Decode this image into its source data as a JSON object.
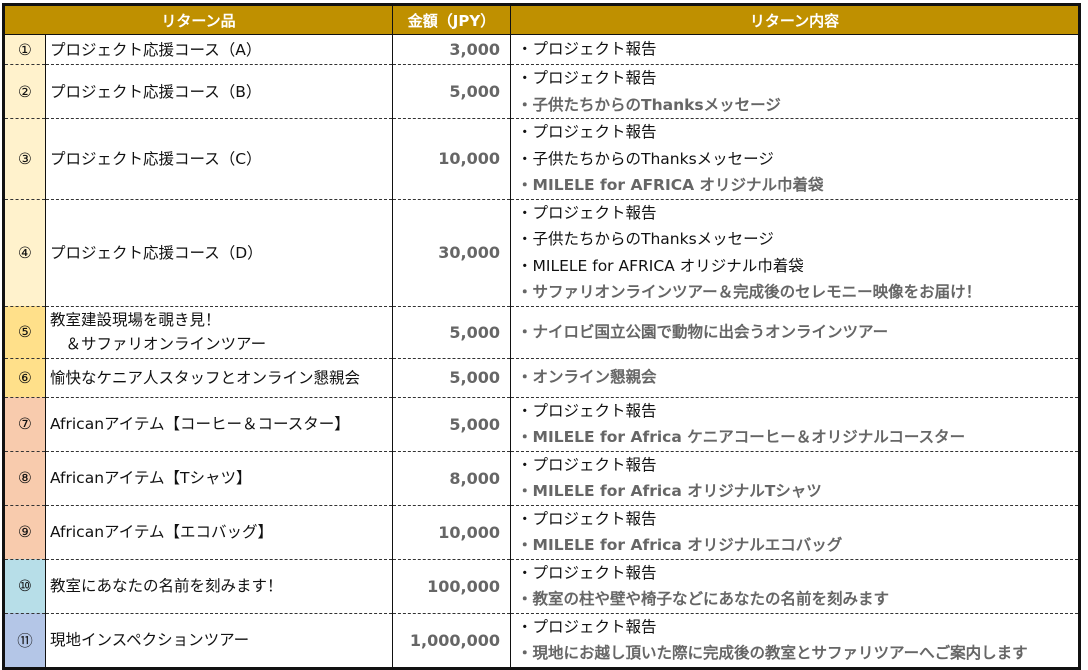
{
  "header": {
    "item": "リターン品",
    "amount": "金額（JPY）",
    "content": "リターン内容"
  },
  "colors": {
    "header": "#BF9000",
    "group_support": "#FFF2CC",
    "group_tour": "#FFE08A",
    "group_african": "#F8CBAD",
    "group_name": "#B7DEE8",
    "group_inspection": "#B4C6E7"
  },
  "rows": [
    {
      "no": "①",
      "name": [
        "プロジェクト応援コース（A）"
      ],
      "amount": "3,000",
      "color": "#FFF2CC",
      "contents": [
        {
          "text": "・プロジェクト報告",
          "bold": false
        }
      ]
    },
    {
      "no": "②",
      "name": [
        "プロジェクト応援コース（B）"
      ],
      "amount": "5,000",
      "color": "#FFF2CC",
      "contents": [
        {
          "text": "・プロジェクト報告",
          "bold": false
        },
        {
          "text": "・子供たちからのThanksメッセージ",
          "bold": true
        }
      ]
    },
    {
      "no": "③",
      "name": [
        "プロジェクト応援コース（C）"
      ],
      "amount": "10,000",
      "color": "#FFF2CC",
      "contents": [
        {
          "text": "・プロジェクト報告",
          "bold": false
        },
        {
          "text": "・子供たちからのThanksメッセージ",
          "bold": false
        },
        {
          "text": "・MILELE for AFRICA オリジナル巾着袋",
          "bold": true
        }
      ]
    },
    {
      "no": "④",
      "name": [
        "プロジェクト応援コース（D）"
      ],
      "amount": "30,000",
      "color": "#FFF2CC",
      "contents": [
        {
          "text": "・プロジェクト報告",
          "bold": false
        },
        {
          "text": "・子供たちからのThanksメッセージ",
          "bold": false
        },
        {
          "text": "・MILELE for AFRICA オリジナル巾着袋",
          "bold": false
        },
        {
          "text": "・サファリオンラインツアー＆完成後のセレモニー映像をお届け！",
          "bold": true
        }
      ]
    },
    {
      "no": "⑤",
      "name": [
        "教室建設現場を覗き見！",
        "　＆サファリオンラインツアー"
      ],
      "amount": "5,000",
      "color": "#FFE08A",
      "contents": [
        {
          "text": "・ナイロビ国立公園で動物に出会うオンラインツアー",
          "bold": true
        }
      ]
    },
    {
      "no": "⑥",
      "name": [
        "愉快なケニア人スタッフとオンライン懇親会"
      ],
      "amount": "5,000",
      "color": "#FFE08A",
      "contents": [
        {
          "text": "・オンライン懇親会",
          "bold": true
        }
      ]
    },
    {
      "no": "⑦",
      "name": [
        "Africanアイテム【コーヒー＆コースター】"
      ],
      "amount": "5,000",
      "color": "#F8CBAD",
      "contents": [
        {
          "text": "・プロジェクト報告",
          "bold": false
        },
        {
          "text": "・MILELE for Africa ケニアコーヒー＆オリジナルコースター",
          "bold": true
        }
      ]
    },
    {
      "no": "⑧",
      "name": [
        "Africanアイテム【Tシャツ】"
      ],
      "amount": "8,000",
      "color": "#F8CBAD",
      "contents": [
        {
          "text": "・プロジェクト報告",
          "bold": false
        },
        {
          "text": "・MILELE for Africa オリジナルTシャツ",
          "bold": true
        }
      ]
    },
    {
      "no": "⑨",
      "name": [
        "Africanアイテム【エコバッグ】"
      ],
      "amount": "10,000",
      "color": "#F8CBAD",
      "contents": [
        {
          "text": "・プロジェクト報告",
          "bold": false
        },
        {
          "text": "・MILELE for Africa オリジナルエコバッグ",
          "bold": true
        }
      ]
    },
    {
      "no": "⑩",
      "name": [
        "教室にあなたの名前を刻みます！"
      ],
      "amount": "100,000",
      "color": "#B7DEE8",
      "contents": [
        {
          "text": "・プロジェクト報告",
          "bold": false
        },
        {
          "text": "・教室の柱や壁や椅子などにあなたの名前を刻みます",
          "bold": true
        }
      ]
    },
    {
      "no": "⑪",
      "name": [
        "現地インスペクションツアー"
      ],
      "amount": "1,000,000",
      "color": "#B4C6E7",
      "contents": [
        {
          "text": "・プロジェクト報告",
          "bold": false
        },
        {
          "text": "・現地にお越し頂いた際に完成後の教室とサファリツアーへご案内します",
          "bold": true
        }
      ]
    }
  ]
}
